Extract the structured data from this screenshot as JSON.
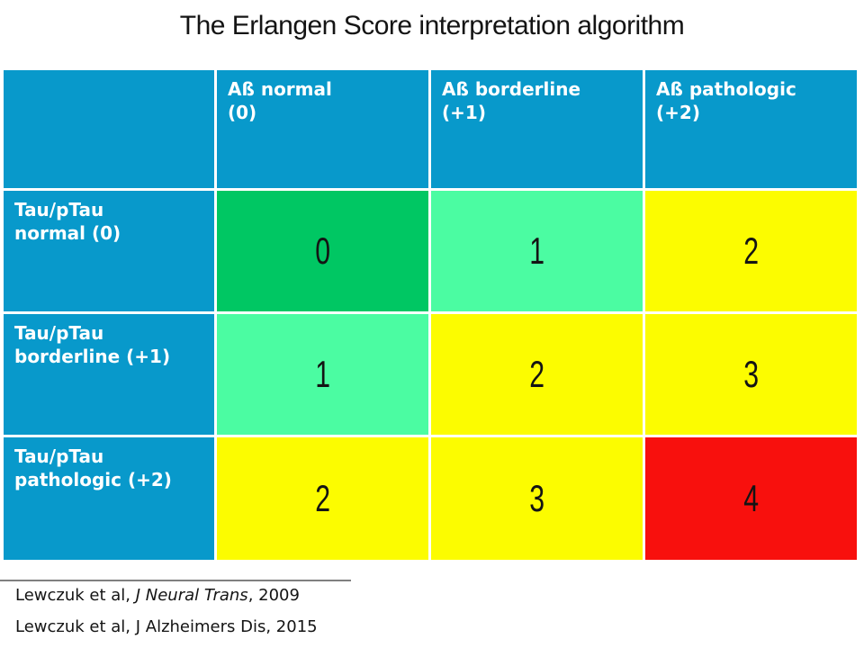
{
  "title": "The Erlangen Score interpretation algorithm",
  "colors": {
    "header_blue": "#0899CB",
    "score_green": "#00C763",
    "score_mint": "#4BFCA2",
    "score_yellow": "#FCFC00",
    "score_red": "#F8100D",
    "divider_gray": "#808080",
    "header_text": "#FFFFFF",
    "body_text": "#141414"
  },
  "table": {
    "column_headers": [
      "Aß normal\n(0)",
      "Aß borderline\n(+1)",
      "Aß pathologic\n(+2)"
    ],
    "row_headers": [
      "Tau/pTau\nnormal (0)",
      "Tau/pTau\nborderline (+1)",
      "Tau/pTau\npathologic (+2)"
    ],
    "cells": [
      [
        {
          "value": "0",
          "bg": "#00C763"
        },
        {
          "value": "1",
          "bg": "#4BFCA2"
        },
        {
          "value": "2",
          "bg": "#FCFC00"
        }
      ],
      [
        {
          "value": "1",
          "bg": "#4BFCA2"
        },
        {
          "value": "2",
          "bg": "#FCFC00"
        },
        {
          "value": "3",
          "bg": "#FCFC00"
        }
      ],
      [
        {
          "value": "2",
          "bg": "#FCFC00"
        },
        {
          "value": "3",
          "bg": "#FCFC00"
        },
        {
          "value": "4",
          "bg": "#F8100D"
        }
      ]
    ]
  },
  "citations": [
    {
      "prefix": "Lewczuk et al, ",
      "journal_italic": "J Neural Trans",
      "suffix": ", 2009"
    },
    {
      "text": "Lewczuk et al, J Alzheimers Dis, 2015"
    }
  ]
}
